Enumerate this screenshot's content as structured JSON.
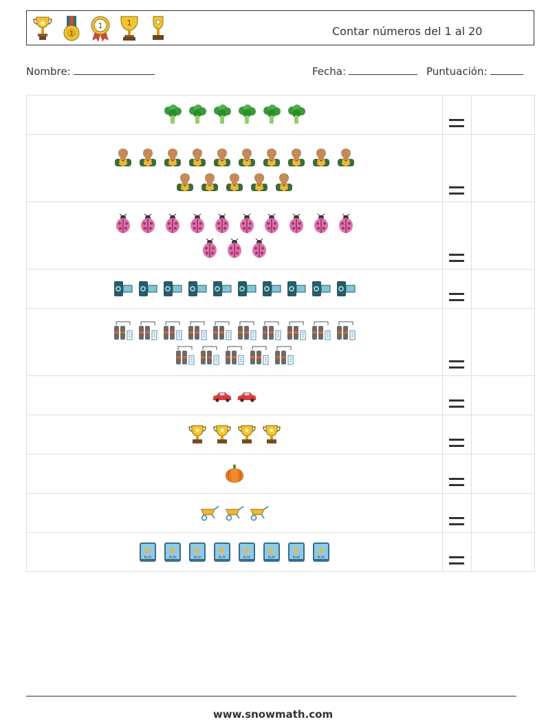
{
  "header": {
    "icons": [
      "trophy-cup-icon",
      "medal-ribbon-icon",
      "rosette-award-icon",
      "trophy-one-icon",
      "trophy-small-icon"
    ],
    "title": "Contar números del 1 al 20"
  },
  "meta": {
    "name_label": "Nombre:",
    "date_label": "Fecha:",
    "score_label": "Puntuación:"
  },
  "rows": [
    {
      "icon": "broccoli",
      "count": 6
    },
    {
      "icon": "person",
      "count": 15
    },
    {
      "icon": "ladybug",
      "count": 13
    },
    {
      "icon": "camcorder",
      "count": 10
    },
    {
      "icon": "gas-cylinders",
      "count": 15
    },
    {
      "icon": "car",
      "count": 2
    },
    {
      "icon": "trophy",
      "count": 4
    },
    {
      "icon": "pumpkin",
      "count": 1
    },
    {
      "icon": "wheelbarrow",
      "count": 3
    },
    {
      "icon": "play-tablet",
      "count": 8
    }
  ],
  "footer": {
    "url": "www.snowmath.com"
  }
}
